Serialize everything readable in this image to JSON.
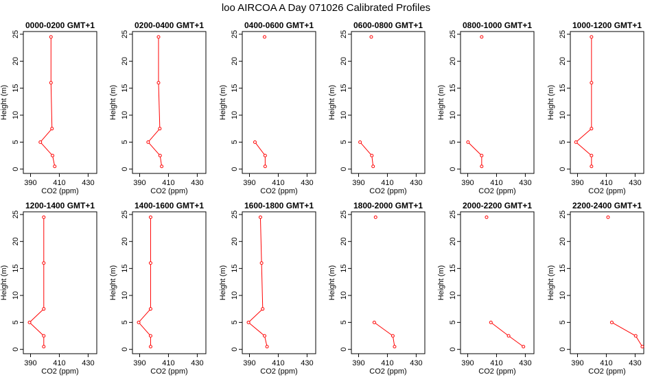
{
  "title": "loo AIRCOA A  Day 071026  Calibrated Profiles",
  "colors": {
    "series": "#ff0000",
    "axis": "#000000",
    "background": "#ffffff"
  },
  "chart_data": [
    {
      "type": "line",
      "title": "0000-0200 GMT+1",
      "xlabel": "CO2 (ppm)",
      "ylabel": "Height (m)",
      "xlim": [
        385,
        436
      ],
      "ylim": [
        -0.8,
        25.5
      ],
      "xticks": [
        390,
        410,
        430
      ],
      "yticks": [
        0,
        5,
        10,
        15,
        20,
        25
      ],
      "grid": false,
      "x": [
        406.8,
        405.3,
        396.8,
        404.9,
        404.2,
        404.2
      ],
      "y": [
        0.5,
        2.5,
        5,
        7.5,
        16,
        24.5
      ]
    },
    {
      "type": "line",
      "title": "0200-0400 GMT+1",
      "xlabel": "CO2 (ppm)",
      "ylabel": "Height (m)",
      "xlim": [
        385,
        436
      ],
      "ylim": [
        -0.8,
        25.5
      ],
      "xticks": [
        390,
        410,
        430
      ],
      "yticks": [
        0,
        5,
        10,
        15,
        20,
        25
      ],
      "grid": false,
      "x": [
        405.3,
        404.2,
        395.9,
        404.0,
        403.1,
        403.1
      ],
      "y": [
        0.5,
        2.5,
        5,
        7.5,
        16,
        24.5
      ]
    },
    {
      "type": "line",
      "title": "0400-0600 GMT+1",
      "xlabel": "CO2 (ppm)",
      "ylabel": "Height (m)",
      "xlim": [
        385,
        436
      ],
      "ylim": [
        -0.8,
        25.5
      ],
      "xticks": [
        390,
        410,
        430
      ],
      "yticks": [
        0,
        5,
        10,
        15,
        20,
        25
      ],
      "grid": false,
      "x": [
        400.9,
        400.9,
        393.8,
        null,
        null,
        400.5
      ],
      "y": [
        0.5,
        2.5,
        5,
        7.5,
        16,
        24.5
      ]
    },
    {
      "type": "line",
      "title": "0600-0800 GMT+1",
      "xlabel": "CO2 (ppm)",
      "ylabel": "Height (m)",
      "xlim": [
        385,
        436
      ],
      "ylim": [
        -0.8,
        25.5
      ],
      "xticks": [
        390,
        410,
        430
      ],
      "yticks": [
        0,
        5,
        10,
        15,
        20,
        25
      ],
      "grid": false,
      "x": [
        400.1,
        399.2,
        391.0,
        null,
        null,
        398.8
      ],
      "y": [
        0.5,
        2.5,
        5,
        7.5,
        16,
        24.5
      ]
    },
    {
      "type": "line",
      "title": "0800-1000 GMT+1",
      "xlabel": "CO2 (ppm)",
      "ylabel": "Height (m)",
      "xlim": [
        385,
        436
      ],
      "ylim": [
        -0.8,
        25.5
      ],
      "xticks": [
        390,
        410,
        430
      ],
      "yticks": [
        0,
        5,
        10,
        15,
        20,
        25
      ],
      "grid": false,
      "x": [
        399.7,
        399.7,
        390.2,
        null,
        null,
        399.7
      ],
      "y": [
        0.5,
        2.5,
        5,
        7.5,
        16,
        24.5
      ]
    },
    {
      "type": "line",
      "title": "1000-1200 GMT+1",
      "xlabel": "CO2 (ppm)",
      "ylabel": "Height (m)",
      "xlim": [
        385,
        436
      ],
      "ylim": [
        -0.8,
        25.5
      ],
      "xticks": [
        390,
        410,
        430
      ],
      "yticks": [
        0,
        5,
        10,
        15,
        20,
        25
      ],
      "grid": false,
      "x": [
        399.7,
        399.7,
        388.9,
        399.7,
        399.7,
        399.7
      ],
      "y": [
        0.5,
        2.5,
        5,
        7.5,
        16,
        24.5
      ]
    },
    {
      "type": "line",
      "title": "1200-1400 GMT+1",
      "xlabel": "CO2 (ppm)",
      "ylabel": "Height (m)",
      "xlim": [
        385,
        436
      ],
      "ylim": [
        -0.8,
        25.5
      ],
      "xticks": [
        390,
        410,
        430
      ],
      "yticks": [
        0,
        5,
        10,
        15,
        20,
        25
      ],
      "grid": false,
      "x": [
        399.2,
        399.2,
        389.3,
        399.2,
        399.2,
        399.2
      ],
      "y": [
        0.5,
        2.5,
        5,
        7.5,
        16,
        24.5
      ]
    },
    {
      "type": "line",
      "title": "1400-1600 GMT+1",
      "xlabel": "CO2 (ppm)",
      "ylabel": "Height (m)",
      "xlim": [
        385,
        436
      ],
      "ylim": [
        -0.8,
        25.5
      ],
      "xticks": [
        390,
        410,
        430
      ],
      "yticks": [
        0,
        5,
        10,
        15,
        20,
        25
      ],
      "grid": false,
      "x": [
        397.6,
        397.6,
        389.3,
        397.6,
        397.6,
        397.6
      ],
      "y": [
        0.5,
        2.5,
        5,
        7.5,
        16,
        24.5
      ]
    },
    {
      "type": "line",
      "title": "1600-1800 GMT+1",
      "xlabel": "CO2 (ppm)",
      "ylabel": "Height (m)",
      "xlim": [
        385,
        436
      ],
      "ylim": [
        -0.8,
        25.5
      ],
      "xticks": [
        390,
        410,
        430
      ],
      "yticks": [
        0,
        5,
        10,
        15,
        20,
        25
      ],
      "grid": false,
      "x": [
        402.2,
        400.5,
        389.3,
        399.2,
        398.4,
        397.6
      ],
      "y": [
        0.5,
        2.5,
        5,
        7.5,
        16,
        24.5
      ]
    },
    {
      "type": "line",
      "title": "1800-2000 GMT+1",
      "xlabel": "CO2 (ppm)",
      "ylabel": "Height (m)",
      "xlim": [
        385,
        436
      ],
      "ylim": [
        -0.8,
        25.5
      ],
      "xticks": [
        390,
        410,
        430
      ],
      "yticks": [
        0,
        5,
        10,
        15,
        20,
        25
      ],
      "grid": false,
      "x": [
        415.0,
        413.8,
        400.9,
        null,
        null,
        401.8
      ],
      "y": [
        0.5,
        2.5,
        5,
        7.5,
        16,
        24.5
      ]
    },
    {
      "type": "line",
      "title": "2000-2200 GMT+1",
      "xlabel": "CO2 (ppm)",
      "ylabel": "Height (m)",
      "xlim": [
        385,
        436
      ],
      "ylim": [
        -0.8,
        25.5
      ],
      "xticks": [
        390,
        410,
        430
      ],
      "yticks": [
        0,
        5,
        10,
        15,
        20,
        25
      ],
      "grid": false,
      "x": [
        428.7,
        418.4,
        406.1,
        null,
        null,
        403.1
      ],
      "y": [
        0.5,
        2.5,
        5,
        7.5,
        16,
        24.5
      ]
    },
    {
      "type": "line",
      "title": "2200-2400 GMT+1",
      "xlabel": "CO2 (ppm)",
      "ylabel": "Height (m)",
      "xlim": [
        385,
        436
      ],
      "ylim": [
        -0.8,
        25.5
      ],
      "xticks": [
        390,
        410,
        430
      ],
      "yticks": [
        0,
        5,
        10,
        15,
        20,
        25
      ],
      "grid": false,
      "x": [
        435.0,
        430.4,
        413.8,
        null,
        null,
        411.2
      ],
      "y": [
        0.5,
        2.5,
        5,
        7.5,
        16,
        24.5
      ]
    }
  ]
}
